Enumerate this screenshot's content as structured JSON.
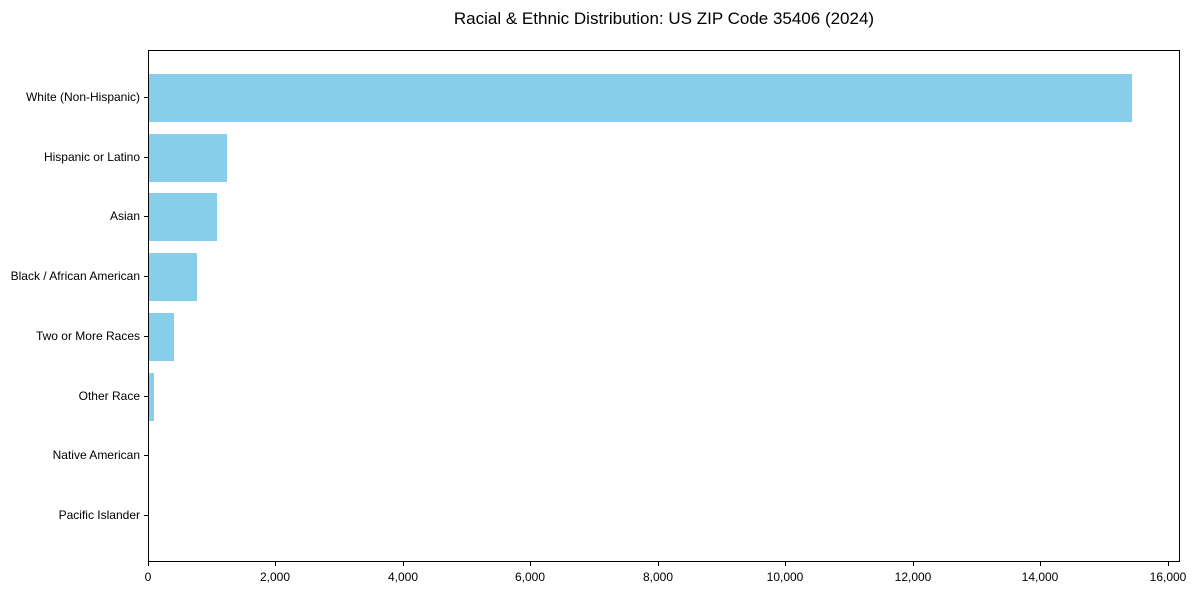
{
  "figure": {
    "background_color": "#ffffff"
  },
  "chart_data": {
    "type": "bar",
    "orientation": "horizontal",
    "title": "Racial & Ethnic Distribution: US ZIP Code 35406 (2024)",
    "categories": [
      "White (Non-Hispanic)",
      "Hispanic or Latino",
      "Asian",
      "Black / African American",
      "Two or More Races",
      "Other Race",
      "Native American",
      "Pacific Islander"
    ],
    "values": [
      15420,
      1220,
      1070,
      760,
      400,
      85,
      0,
      0
    ],
    "xlabel": "",
    "ylabel": "",
    "xlim": [
      0,
      16190
    ],
    "xticks": [
      0,
      2000,
      4000,
      6000,
      8000,
      10000,
      12000,
      14000,
      16000
    ],
    "xtick_labels": [
      "0",
      "2,000",
      "4,000",
      "6,000",
      "8,000",
      "10,000",
      "12,000",
      "14,000",
      "16,000"
    ],
    "bar_color": "#87CEEB",
    "axis_color": "#000000",
    "text_color": "#000000",
    "grid": false,
    "legend": null
  }
}
